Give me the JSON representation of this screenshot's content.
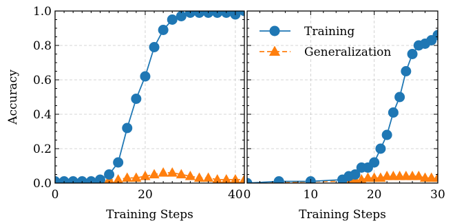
{
  "chart_data": [
    {
      "type": "line",
      "xlabel": "Training Steps",
      "ylabel": "Accuracy",
      "xlim": [
        0,
        42
      ],
      "ylim": [
        0,
        1.0
      ],
      "x_ticks": [
        0,
        20,
        40
      ],
      "y_ticks": [
        0.0,
        0.2,
        0.4,
        0.6,
        0.8,
        1.0
      ],
      "y_tick_labels": [
        "0.0",
        "0.2",
        "0.4",
        "0.6",
        "0.8",
        "1.0"
      ],
      "grid": true,
      "series": [
        {
          "name": "Training",
          "marker": "circle",
          "line_style": "solid",
          "color": "#1f77b4",
          "x": [
            0,
            2,
            4,
            6,
            8,
            10,
            12,
            14,
            16,
            18,
            20,
            22,
            24,
            26,
            28,
            30,
            32,
            34,
            36,
            38,
            40,
            42
          ],
          "y": [
            0.01,
            0.01,
            0.01,
            0.01,
            0.01,
            0.02,
            0.05,
            0.12,
            0.32,
            0.49,
            0.62,
            0.79,
            0.89,
            0.95,
            0.97,
            0.99,
            0.99,
            0.99,
            0.99,
            0.99,
            0.98,
            1.0
          ]
        },
        {
          "name": "Generalization",
          "marker": "triangle",
          "line_style": "dashed",
          "color": "#ff7f0e",
          "x": [
            0,
            2,
            4,
            6,
            8,
            10,
            12,
            14,
            16,
            18,
            20,
            22,
            24,
            26,
            28,
            30,
            32,
            34,
            36,
            38,
            40,
            42
          ],
          "y": [
            0.01,
            0.01,
            0.01,
            0.01,
            0.01,
            0.01,
            0.02,
            0.02,
            0.03,
            0.03,
            0.04,
            0.05,
            0.06,
            0.06,
            0.05,
            0.04,
            0.03,
            0.03,
            0.02,
            0.02,
            0.02,
            0.02
          ]
        }
      ]
    },
    {
      "type": "line",
      "xlabel": "Training Steps",
      "ylabel": "",
      "xlim": [
        0,
        30
      ],
      "ylim": [
        0,
        1.0
      ],
      "x_ticks": [
        0,
        10,
        20,
        30
      ],
      "grid": true,
      "legend_position": "top-left",
      "series": [
        {
          "name": "Training",
          "marker": "circle",
          "line_style": "solid",
          "color": "#1f77b4",
          "x": [
            0,
            5,
            10,
            15,
            16,
            17,
            18,
            19,
            20,
            21,
            22,
            23,
            24,
            25,
            26,
            27,
            28,
            29,
            30
          ],
          "y": [
            0.0,
            0.01,
            0.01,
            0.02,
            0.04,
            0.05,
            0.09,
            0.09,
            0.12,
            0.2,
            0.28,
            0.41,
            0.5,
            0.65,
            0.75,
            0.8,
            0.81,
            0.83,
            0.86
          ]
        },
        {
          "name": "Generalization",
          "marker": "triangle",
          "line_style": "dashed",
          "color": "#ff7f0e",
          "x": [
            0,
            5,
            10,
            15,
            16,
            17,
            18,
            19,
            20,
            21,
            22,
            23,
            24,
            25,
            26,
            27,
            28,
            29,
            30
          ],
          "y": [
            0.0,
            0.0,
            0.01,
            0.01,
            0.02,
            0.02,
            0.02,
            0.03,
            0.03,
            0.03,
            0.04,
            0.04,
            0.04,
            0.04,
            0.04,
            0.04,
            0.03,
            0.03,
            0.03
          ]
        }
      ]
    }
  ]
}
